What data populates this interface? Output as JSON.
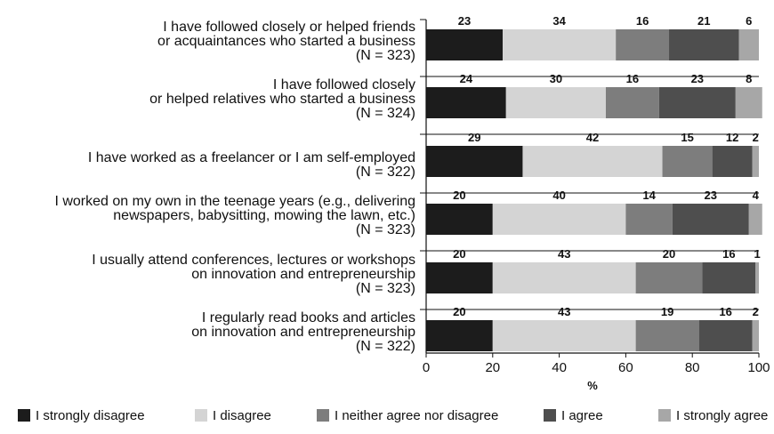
{
  "chart_data": {
    "type": "bar",
    "orientation": "horizontal",
    "stacked": true,
    "xlabel": "%",
    "xlim": [
      0,
      100
    ],
    "xticks": [
      0,
      20,
      40,
      60,
      80,
      100
    ],
    "legend_position": "bottom",
    "grid": false,
    "categories": [
      [
        "I have followed closely or helped friends",
        "or acquaintances who started a business",
        "(N = 323)"
      ],
      [
        "I have followed closely",
        "or helped relatives who started a business",
        "(N = 324)"
      ],
      [
        "I have worked as a freelancer or I am self-employed",
        "(N = 322)"
      ],
      [
        "I worked on my own in the teenage years (e.g., delivering",
        "newspapers, babysitting, mowing the lawn, etc.)",
        "(N = 323)"
      ],
      [
        "I usually attend conferences, lectures or workshops",
        "on innovation and entrepreneurship",
        "(N = 323)"
      ],
      [
        "I regularly read books and articles",
        "on innovation and entrepreneurship",
        "(N = 322)"
      ]
    ],
    "series": [
      {
        "name": "I strongly disagree",
        "color": "#1c1c1c",
        "values": [
          23,
          24,
          29,
          20,
          20,
          20
        ]
      },
      {
        "name": "I disagree",
        "color": "#d4d4d4",
        "values": [
          34,
          30,
          42,
          40,
          43,
          43
        ]
      },
      {
        "name": "I neither agree nor disagree",
        "color": "#7d7d7d",
        "values": [
          16,
          16,
          15,
          14,
          20,
          19
        ]
      },
      {
        "name": "I agree",
        "color": "#4e4e4e",
        "values": [
          21,
          23,
          12,
          23,
          16,
          16
        ]
      },
      {
        "name": "I strongly agree",
        "color": "#a7a7a7",
        "values": [
          6,
          8,
          2,
          4,
          1,
          2
        ]
      }
    ]
  }
}
